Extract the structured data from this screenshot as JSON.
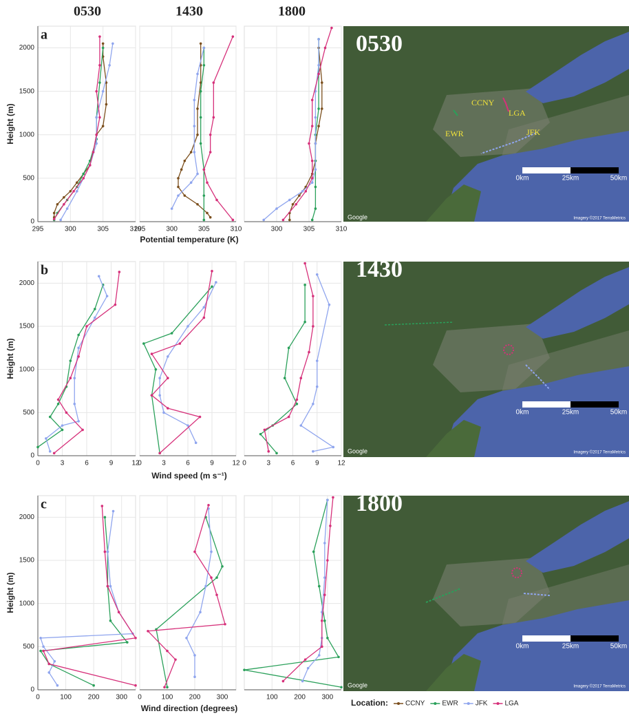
{
  "column_titles": [
    "0530",
    "1430",
    "1800"
  ],
  "legend_title": "Location:",
  "chart_data": [
    {
      "type": "line",
      "panel": "a",
      "ylabel": "Height (m)",
      "xlim": [
        295,
        310
      ],
      "ylim": [
        0,
        2250
      ],
      "xticks": [
        295,
        300,
        305,
        310
      ],
      "yticks": [
        0,
        500,
        1000,
        1500,
        2000
      ],
      "grid": true,
      "series": [
        {
          "name": "CCNY",
          "color": "#7b4f1d",
          "x": [
            297.5,
            297.5,
            298,
            299,
            300,
            301,
            302,
            303,
            303.5,
            304,
            305,
            305.5,
            305.5,
            305,
            305
          ],
          "values": [
            50,
            100,
            200,
            280,
            350,
            450,
            550,
            650,
            800,
            1000,
            1100,
            1350,
            1600,
            1900,
            2050
          ]
        },
        {
          "name": "EWR",
          "color": "#2aa05a",
          "x": [
            297.5,
            298,
            299.5,
            301,
            302,
            303,
            304,
            304,
            304.5,
            305
          ],
          "values": [
            20,
            100,
            250,
            400,
            550,
            700,
            950,
            1200,
            1600,
            2000
          ]
        },
        {
          "name": "JFK",
          "color": "#8fa5ee",
          "x": [
            298.5,
            299.5,
            301,
            302,
            303,
            304,
            304,
            305,
            306,
            306.5
          ],
          "values": [
            20,
            150,
            350,
            500,
            650,
            900,
            1200,
            1500,
            1800,
            2050
          ]
        },
        {
          "name": "LGA",
          "color": "#d6307a",
          "x": [
            297.5,
            299,
            300.5,
            302,
            303,
            303.5,
            304,
            304.5,
            304,
            304.5,
            304.5
          ],
          "values": [
            30,
            200,
            350,
            500,
            650,
            800,
            1000,
            1200,
            1500,
            1800,
            2130
          ]
        }
      ]
    },
    {
      "type": "line",
      "xlabel": "Potential temperature (K)",
      "xlim": [
        295,
        310
      ],
      "ylim": [
        0,
        2250
      ],
      "xticks": [
        295,
        300,
        305,
        310
      ],
      "yticks": [
        0,
        500,
        1000,
        1500,
        2000
      ],
      "grid": true,
      "series": [
        {
          "name": "CCNY",
          "color": "#7b4f1d",
          "x": [
            306,
            305.5,
            304,
            302,
            301,
            301,
            301.5,
            302,
            303,
            304,
            304,
            304.5,
            304.5,
            304.5
          ],
          "values": [
            50,
            100,
            200,
            300,
            400,
            500,
            600,
            700,
            800,
            1000,
            1300,
            1600,
            1800,
            2050
          ]
        },
        {
          "name": "EWR",
          "color": "#2aa05a",
          "x": [
            305,
            305,
            305,
            304.5,
            304.5,
            304.5,
            305,
            305
          ],
          "values": [
            20,
            300,
            600,
            900,
            1200,
            1500,
            1800,
            2000
          ]
        },
        {
          "name": "JFK",
          "color": "#8fa5ee",
          "x": [
            300,
            301,
            303,
            304,
            303.5,
            303.5,
            303.5,
            304,
            305
          ],
          "values": [
            150,
            300,
            450,
            550,
            800,
            1100,
            1400,
            1700,
            2000
          ]
        },
        {
          "name": "LGA",
          "color": "#d6307a",
          "x": [
            309.5,
            307,
            305.5,
            305,
            306,
            306,
            306.5,
            306.5,
            309.5
          ],
          "values": [
            20,
            250,
            450,
            600,
            800,
            1000,
            1200,
            1600,
            2130
          ]
        }
      ]
    },
    {
      "type": "line",
      "xlim": [
        295,
        310
      ],
      "ylim": [
        0,
        2250
      ],
      "xticks": [
        300,
        305,
        310
      ],
      "yticks": [
        0,
        500,
        1000,
        1500,
        2000
      ],
      "grid": true,
      "series": [
        {
          "name": "CCNY",
          "color": "#7b4f1d",
          "x": [
            302,
            302,
            302.5,
            303.5,
            304.5,
            305.5,
            306,
            306,
            306.5,
            307,
            307,
            306.5
          ],
          "values": [
            20,
            100,
            200,
            300,
            400,
            550,
            700,
            900,
            1100,
            1300,
            1600,
            2000
          ]
        },
        {
          "name": "EWR",
          "color": "#2aa05a",
          "x": [
            305.5,
            306,
            306,
            306,
            306,
            306.5,
            306.5,
            306.5
          ],
          "values": [
            20,
            150,
            400,
            700,
            1000,
            1300,
            1700,
            2100
          ]
        },
        {
          "name": "JFK",
          "color": "#8fa5ee",
          "x": [
            298,
            300,
            302,
            304,
            305.5,
            306,
            306,
            306,
            306,
            306.5,
            306.5
          ],
          "values": [
            20,
            150,
            250,
            350,
            450,
            600,
            900,
            1200,
            1500,
            1800,
            2100
          ]
        },
        {
          "name": "LGA",
          "color": "#d6307a",
          "x": [
            301,
            303,
            304.5,
            305.5,
            305.5,
            305,
            305.5,
            305.5,
            306.5,
            307.5,
            308.5
          ],
          "values": [
            20,
            200,
            350,
            500,
            700,
            900,
            1100,
            1400,
            1700,
            2000,
            2230
          ]
        }
      ]
    },
    {
      "type": "line",
      "panel": "b",
      "ylabel": "Height (m)",
      "xlim": [
        0,
        12
      ],
      "ylim": [
        0,
        2250
      ],
      "xticks": [
        0,
        3,
        6,
        9,
        12
      ],
      "yticks": [
        0,
        500,
        1000,
        1500,
        2000
      ],
      "grid": true,
      "series": [
        {
          "name": "EWR",
          "color": "#2aa05a",
          "x": [
            0,
            3,
            1.5,
            2.5,
            3.5,
            4,
            5,
            7,
            8
          ],
          "values": [
            100,
            300,
            450,
            600,
            800,
            1100,
            1400,
            1700,
            1980
          ]
        },
        {
          "name": "JFK",
          "color": "#8fa5ee",
          "x": [
            1.5,
            1,
            3,
            5,
            4.5,
            4.5,
            5,
            7,
            8.5,
            7.5
          ],
          "values": [
            50,
            200,
            350,
            400,
            600,
            900,
            1250,
            1600,
            1850,
            2080
          ]
        },
        {
          "name": "LGA",
          "color": "#d6307a",
          "x": [
            2,
            5.5,
            3.5,
            2.5,
            4,
            5,
            6,
            9.5,
            10
          ],
          "values": [
            30,
            300,
            500,
            650,
            900,
            1150,
            1500,
            1750,
            2130
          ]
        }
      ]
    },
    {
      "type": "line",
      "xlabel": "Wind speed (m s⁻¹)",
      "xlim": [
        0,
        12
      ],
      "ylim": [
        0,
        2250
      ],
      "xticks": [
        0,
        3,
        6,
        9,
        12
      ],
      "yticks": [
        0,
        500,
        1000,
        1500,
        2000
      ],
      "grid": true,
      "series": [
        {
          "name": "EWR",
          "color": "#2aa05a",
          "x": [
            2.5,
            1.5,
            2,
            0.5,
            4,
            9
          ],
          "values": [
            30,
            700,
            1000,
            1300,
            1420,
            1960
          ]
        },
        {
          "name": "JFK",
          "color": "#8fa5ee",
          "x": [
            7,
            6,
            3,
            2.5,
            2.5,
            3.5,
            6,
            8,
            9.5
          ],
          "values": [
            150,
            350,
            500,
            700,
            900,
            1150,
            1500,
            1720,
            2010
          ]
        },
        {
          "name": "LGA",
          "color": "#d6307a",
          "x": [
            2.5,
            7.5,
            3.5,
            1.5,
            3.5,
            1.5,
            5,
            8,
            9
          ],
          "values": [
            30,
            450,
            550,
            700,
            900,
            1180,
            1300,
            1600,
            2140
          ]
        }
      ]
    },
    {
      "type": "line",
      "xlim": [
        0,
        12
      ],
      "ylim": [
        0,
        2250
      ],
      "xticks": [
        0,
        3,
        6,
        9,
        12
      ],
      "yticks": [
        0,
        500,
        1000,
        1500,
        2000
      ],
      "grid": true,
      "series": [
        {
          "name": "EWR",
          "color": "#2aa05a",
          "x": [
            4,
            2,
            3.5,
            6.5,
            5,
            5.5,
            7.5,
            7.5
          ],
          "values": [
            30,
            250,
            350,
            600,
            900,
            1250,
            1550,
            1980
          ]
        },
        {
          "name": "JFK",
          "color": "#8fa5ee",
          "x": [
            8.5,
            11,
            7,
            8.5,
            9,
            9,
            10.5,
            9
          ],
          "values": [
            50,
            100,
            350,
            600,
            800,
            1100,
            1750,
            2100
          ]
        },
        {
          "name": "LGA",
          "color": "#d6307a",
          "x": [
            3,
            2.5,
            5.5,
            6.5,
            7,
            8,
            8.5,
            8.5,
            7.5
          ],
          "values": [
            50,
            300,
            450,
            650,
            900,
            1200,
            1500,
            1850,
            2230
          ]
        }
      ]
    },
    {
      "type": "line",
      "panel": "c",
      "ylabel": "Height (m)",
      "xlim": [
        0,
        350
      ],
      "ylim": [
        0,
        2250
      ],
      "xticks": [
        0,
        100,
        200,
        300
      ],
      "yticks": [
        0,
        500,
        1000,
        1500,
        2000
      ],
      "grid": true,
      "series": [
        {
          "name": "EWR",
          "color": "#2aa05a",
          "x": [
            200,
            40,
            10,
            320,
            260,
            250,
            250,
            240
          ],
          "values": [
            50,
            300,
            450,
            550,
            800,
            1200,
            1600,
            2000
          ]
        },
        {
          "name": "JFK",
          "color": "#8fa5ee",
          "x": [
            70,
            40,
            60,
            20,
            10,
            340,
            290,
            260,
            250,
            270
          ],
          "values": [
            50,
            200,
            330,
            500,
            600,
            650,
            900,
            1200,
            1600,
            2070
          ]
        },
        {
          "name": "LGA",
          "color": "#d6307a",
          "x": [
            350,
            40,
            20,
            350,
            290,
            250,
            240,
            230
          ],
          "values": [
            50,
            300,
            450,
            600,
            900,
            1200,
            1600,
            2130
          ]
        }
      ]
    },
    {
      "type": "line",
      "xlabel": "Wind direction (degrees)",
      "xlim": [
        0,
        350
      ],
      "ylim": [
        0,
        2250
      ],
      "xticks": [
        0,
        100,
        200,
        300
      ],
      "yticks": [
        0,
        500,
        1000,
        1500,
        2000
      ],
      "grid": true,
      "series": [
        {
          "name": "EWR",
          "color": "#2aa05a",
          "x": [
            100,
            60,
            280,
            300,
            240
          ],
          "values": [
            30,
            700,
            1300,
            1430,
            2000
          ]
        },
        {
          "name": "JFK",
          "color": "#8fa5ee",
          "x": [
            200,
            200,
            170,
            220,
            240,
            260,
            250
          ],
          "values": [
            150,
            400,
            600,
            900,
            1200,
            1600,
            2100
          ]
        },
        {
          "name": "LGA",
          "color": "#d6307a",
          "x": [
            90,
            130,
            100,
            30,
            310,
            280,
            260,
            200,
            250
          ],
          "values": [
            30,
            350,
            450,
            680,
            760,
            1100,
            1300,
            1600,
            2140
          ]
        }
      ]
    },
    {
      "type": "line",
      "xlim": [
        0,
        350
      ],
      "ylim": [
        0,
        2250
      ],
      "xticks": [
        100,
        200,
        300
      ],
      "yticks": [
        0,
        500,
        1000,
        1500,
        2000
      ],
      "grid": true,
      "series": [
        {
          "name": "EWR",
          "color": "#2aa05a",
          "x": [
            350,
            0,
            340,
            300,
            290,
            270,
            250,
            300
          ],
          "values": [
            30,
            230,
            380,
            600,
            800,
            1200,
            1600,
            2200
          ]
        },
        {
          "name": "JFK",
          "color": "#8fa5ee",
          "x": [
            210,
            230,
            270,
            280,
            280,
            290,
            290,
            300
          ],
          "values": [
            100,
            250,
            400,
            600,
            900,
            1300,
            1700,
            2200
          ]
        },
        {
          "name": "LGA",
          "color": "#d6307a",
          "x": [
            140,
            220,
            280,
            280,
            290,
            300,
            310,
            320
          ],
          "values": [
            100,
            350,
            500,
            800,
            1100,
            1500,
            1900,
            2230
          ]
        }
      ]
    }
  ],
  "maps": [
    {
      "title": "0530",
      "labels": [
        "CCNY",
        "LGA",
        "EWR",
        "JFK"
      ]
    },
    {
      "title": "1430"
    },
    {
      "title": "1800"
    }
  ],
  "map_scale": [
    "0km",
    "25km",
    "50km"
  ],
  "map_credits": [
    "Google",
    "Imagery ©2017 TerraMetrics"
  ]
}
